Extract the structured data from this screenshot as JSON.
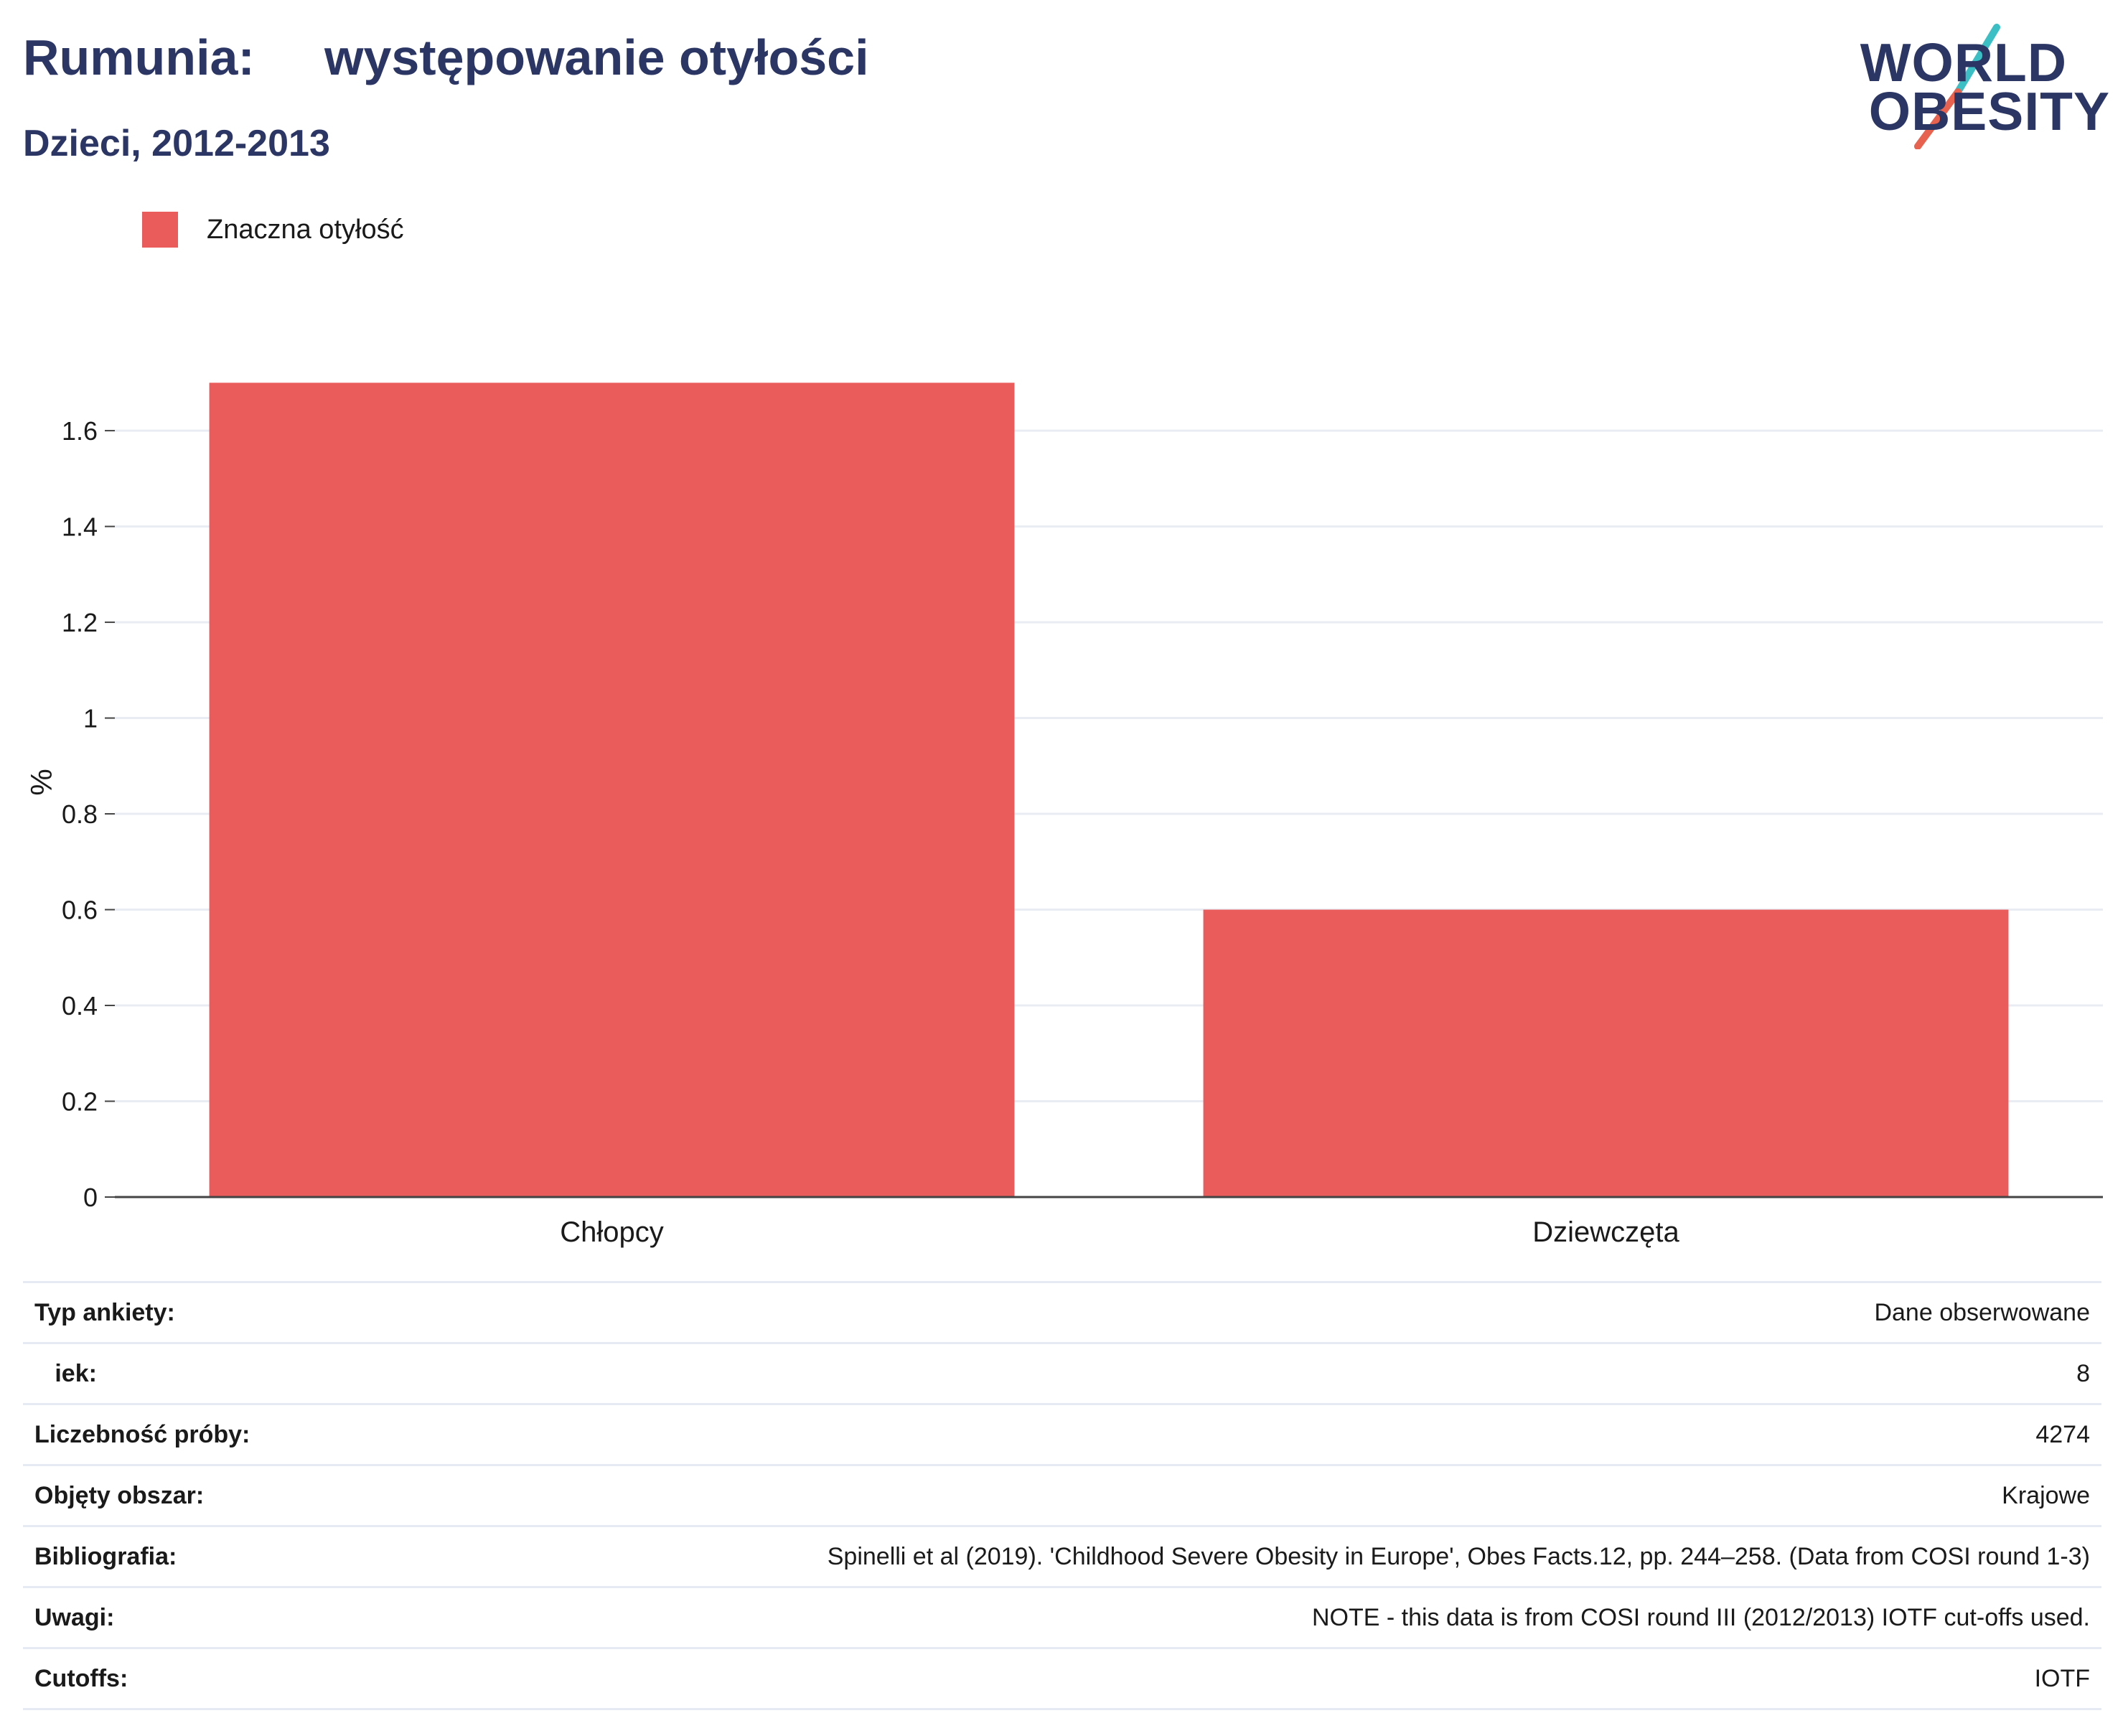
{
  "header": {
    "title": "Rumunia:     występowanie otyłości",
    "subtitle": "Dzieci, 2012-2013"
  },
  "logo": {
    "line1": "WORLD",
    "line2": "OBESITY",
    "slash_colors": [
      "#3bbfc4",
      "#e8634f"
    ]
  },
  "legend": {
    "label": "Znaczna otyłość",
    "color": "#ea5b5b"
  },
  "chart_data": {
    "type": "bar",
    "categories": [
      "Chłopcy",
      "Dziewczęta"
    ],
    "series": [
      {
        "name": "Znaczna otyłość",
        "values": [
          1.7,
          0.6
        ],
        "color": "#ea5b5b"
      }
    ],
    "ylabel": "%",
    "ylim": [
      0,
      1.7
    ],
    "yticks": [
      0,
      0.2,
      0.4,
      0.6,
      0.8,
      1,
      1.2,
      1.4,
      1.6
    ],
    "yticklabels": [
      "0",
      "0.2",
      "0.4",
      "0.6",
      "0.8",
      "1",
      "1.2",
      "1.4",
      "1.6"
    ],
    "grid": true
  },
  "info_table": [
    {
      "key": "Typ ankiety:",
      "value": "Dane obserwowane"
    },
    {
      "key": "   iek:",
      "value": "8"
    },
    {
      "key": "Liczebność próby:",
      "value": "4274"
    },
    {
      "key": "Objęty obszar:",
      "value": "Krajowe"
    },
    {
      "key": "Bibliografia:",
      "value": "Spinelli et al (2019). 'Childhood Severe Obesity in Europe', Obes Facts.12, pp. 244–258. (Data from COSI round 1-3)"
    },
    {
      "key": "Uwagi:",
      "value": "NOTE - this data is from COSI round III (2012/2013) IOTF cut-offs used."
    },
    {
      "key": "Cutoffs:",
      "value": "IOTF"
    }
  ]
}
